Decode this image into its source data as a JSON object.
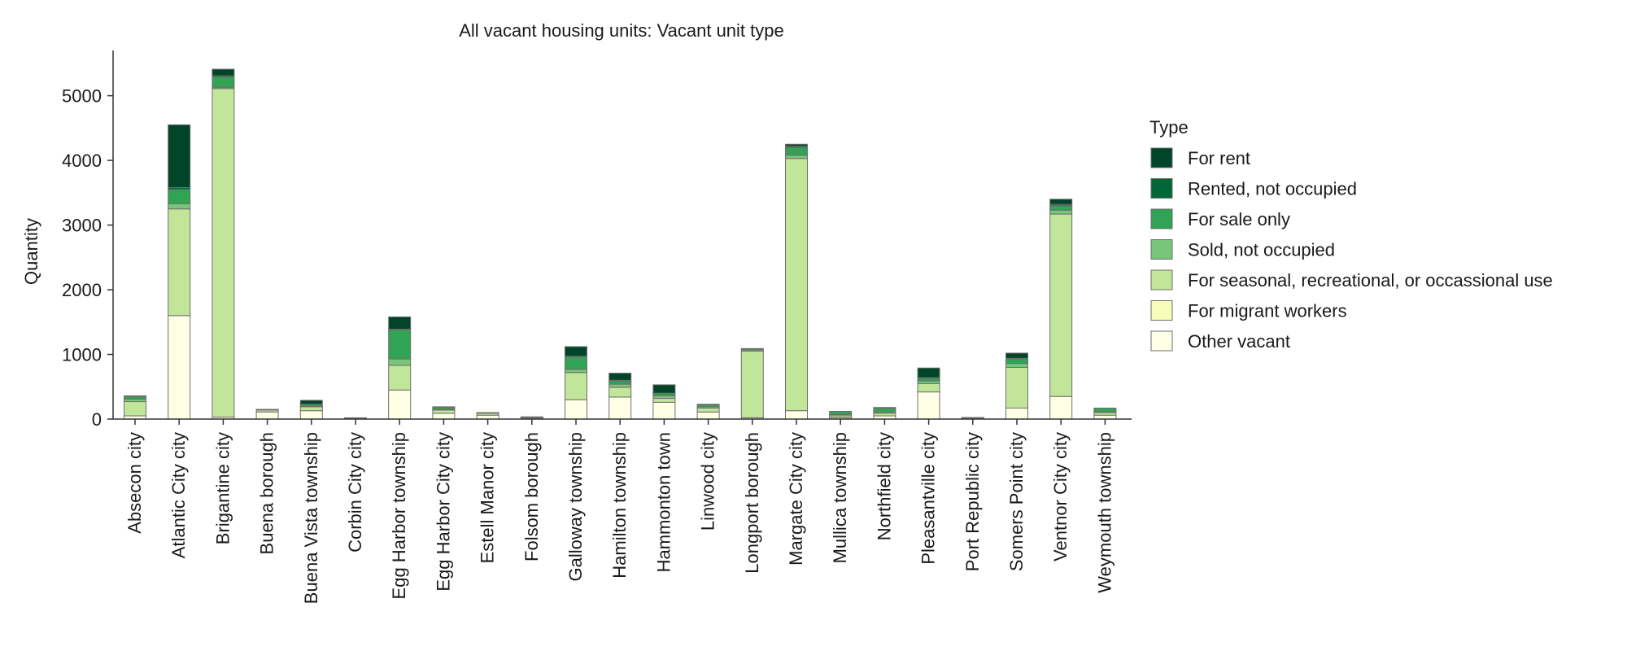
{
  "chart_data": {
    "type": "bar",
    "stacked": true,
    "title": "All vacant housing units: Vacant unit type",
    "xlabel": "",
    "ylabel": "Quantity",
    "ylim": [
      0,
      5700
    ],
    "yticks": [
      0,
      1000,
      2000,
      3000,
      4000,
      5000
    ],
    "grid": false,
    "legend": {
      "title": "Type",
      "placement": "right"
    },
    "categories": [
      "Absecon city",
      "Atlantic City city",
      "Brigantine city",
      "Buena borough",
      "Buena Vista township",
      "Corbin City city",
      "Egg Harbor township",
      "Egg Harbor City city",
      "Estell Manor city",
      "Folsom borough",
      "Galloway township",
      "Hamilton township",
      "Hammonton town",
      "Linwood city",
      "Longport borough",
      "Margate City city",
      "Mullica township",
      "Northfield city",
      "Pleasantville city",
      "Port Republic city",
      "Somers Point city",
      "Ventnor City city",
      "Weymouth township"
    ],
    "series": [
      {
        "name": "Other vacant",
        "color": "#ffffe5",
        "values": [
          50,
          1600,
          30,
          110,
          130,
          10,
          450,
          90,
          60,
          15,
          300,
          340,
          260,
          110,
          20,
          130,
          20,
          50,
          420,
          10,
          170,
          350,
          60
        ]
      },
      {
        "name": "For migrant workers",
        "color": "#f7fcb9",
        "values": [
          0,
          0,
          0,
          0,
          0,
          0,
          0,
          0,
          0,
          0,
          0,
          0,
          0,
          0,
          0,
          0,
          0,
          0,
          0,
          0,
          0,
          0,
          0
        ]
      },
      {
        "name": "For seasonal, recreational, or occassional use",
        "color": "#c2e699",
        "values": [
          220,
          1650,
          5080,
          30,
          60,
          5,
          380,
          50,
          30,
          10,
          420,
          150,
          60,
          60,
          1030,
          3900,
          30,
          40,
          130,
          5,
          630,
          2820,
          40
        ]
      },
      {
        "name": "Sold, not occupied",
        "color": "#78c679",
        "values": [
          40,
          80,
          20,
          5,
          10,
          0,
          100,
          10,
          5,
          5,
          50,
          50,
          40,
          20,
          20,
          50,
          20,
          20,
          40,
          5,
          60,
          60,
          10
        ]
      },
      {
        "name": "For sale only",
        "color": "#31a354",
        "values": [
          40,
          220,
          160,
          5,
          30,
          5,
          450,
          30,
          5,
          5,
          190,
          50,
          30,
          30,
          15,
          120,
          50,
          60,
          40,
          5,
          70,
          70,
          60
        ]
      },
      {
        "name": "Rented, not occupied",
        "color": "#006837",
        "values": [
          0,
          30,
          20,
          0,
          0,
          0,
          10,
          0,
          0,
          0,
          10,
          10,
          10,
          0,
          0,
          20,
          0,
          0,
          10,
          0,
          10,
          20,
          0
        ]
      },
      {
        "name": "For rent",
        "color": "#004529",
        "values": [
          10,
          970,
          100,
          0,
          60,
          0,
          190,
          10,
          0,
          0,
          150,
          110,
          130,
          10,
          5,
          30,
          0,
          10,
          150,
          0,
          80,
          80,
          0
        ]
      }
    ],
    "legend_order": [
      "For rent",
      "Rented, not occupied",
      "For sale only",
      "Sold, not occupied",
      "For seasonal, recreational, or occassional use",
      "For migrant workers",
      "Other vacant"
    ]
  }
}
